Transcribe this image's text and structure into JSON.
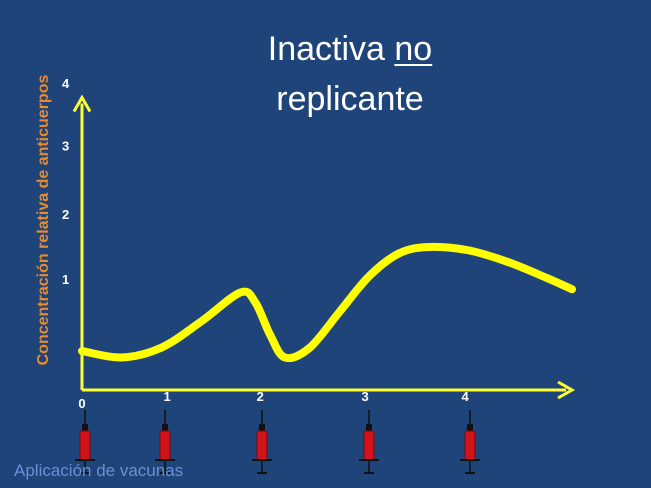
{
  "title": {
    "line1_text": "Inactiva ",
    "line1_emphasis": "no",
    "line2": "replicante"
  },
  "footer": "Aplicación de vacunas",
  "colors": {
    "background": "#1f4479",
    "axis": "#ffff33",
    "curve": "#ffff00",
    "ylabel": "#e98a2b",
    "tick_label": "#ffffff",
    "syringe": "#d0141a",
    "footer": "#6b8fd6"
  },
  "icons": {
    "dose_marker": "syringe-icon"
  },
  "chart_data": {
    "type": "line",
    "title": "Inactiva no replicante",
    "ylabel": "Concentración relativa de anticuerpos",
    "xlabel": "",
    "x_ticks": [
      "0",
      "1",
      "2",
      "3",
      "4"
    ],
    "y_ticks": [
      "1",
      "2",
      "3",
      "4"
    ],
    "xlim": [
      0,
      4.95
    ],
    "ylim": [
      0,
      4.5
    ],
    "vaccine_doses_at": [
      0,
      1,
      2,
      3,
      4
    ],
    "grid": false,
    "series": [
      {
        "values": [
          [
            0,
            0.6
          ],
          [
            0.4,
            0.5
          ],
          [
            0.8,
            0.65
          ],
          [
            1.2,
            1.05
          ],
          [
            1.6,
            1.5
          ],
          [
            1.75,
            1.35
          ],
          [
            1.9,
            0.85
          ],
          [
            2.05,
            0.5
          ],
          [
            2.3,
            0.65
          ],
          [
            2.6,
            1.2
          ],
          [
            2.9,
            1.75
          ],
          [
            3.2,
            2.1
          ],
          [
            3.5,
            2.2
          ],
          [
            3.9,
            2.15
          ],
          [
            4.3,
            1.97
          ],
          [
            4.7,
            1.72
          ],
          [
            4.95,
            1.55
          ]
        ]
      }
    ]
  }
}
